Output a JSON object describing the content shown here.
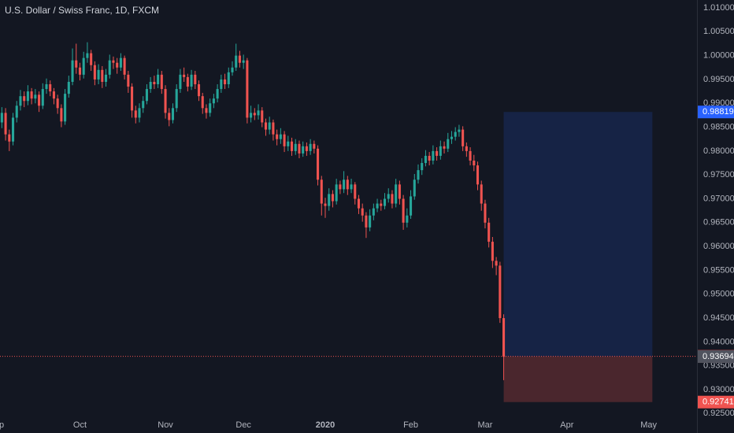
{
  "chart_data": {
    "type": "candlestick",
    "title": "U.S. Dollar / Swiss Franc, 1D, FXCM",
    "up_color": "#26a69a",
    "down_color": "#ef5350",
    "grid": false,
    "xlim": [
      -0.5,
      187
    ],
    "xticks": [
      {
        "value": -1.5,
        "label": "Sep"
      },
      {
        "value": 21,
        "label": "Oct"
      },
      {
        "value": 44,
        "label": "Nov"
      },
      {
        "value": 65,
        "label": "Dec"
      },
      {
        "value": 87,
        "label": "2020"
      },
      {
        "value": 110,
        "label": "Feb"
      },
      {
        "value": 130,
        "label": "Mar"
      },
      {
        "value": 152,
        "label": "Apr"
      },
      {
        "value": 174,
        "label": "May"
      }
    ],
    "ylim": [
      0.92093,
      1.01165
    ],
    "yticks": [
      {
        "value": 1.01,
        "label": "1.01000"
      },
      {
        "value": 1.005,
        "label": "1.00500"
      },
      {
        "value": 1.0,
        "label": "1.00000"
      },
      {
        "value": 0.995,
        "label": "0.99500"
      },
      {
        "value": 0.99,
        "label": "0.99000"
      },
      {
        "value": 0.985,
        "label": "0.98500"
      },
      {
        "value": 0.98,
        "label": "0.98000"
      },
      {
        "value": 0.975,
        "label": "0.97500"
      },
      {
        "value": 0.97,
        "label": "0.97000"
      },
      {
        "value": 0.965,
        "label": "0.96500"
      },
      {
        "value": 0.96,
        "label": "0.96000"
      },
      {
        "value": 0.955,
        "label": "0.95500"
      },
      {
        "value": 0.95,
        "label": "0.95000"
      },
      {
        "value": 0.945,
        "label": "0.94500"
      },
      {
        "value": 0.94,
        "label": "0.94000"
      },
      {
        "value": 0.935,
        "label": "0.93500"
      },
      {
        "value": 0.93,
        "label": "0.93000"
      },
      {
        "value": 0.925,
        "label": "0.92500"
      }
    ],
    "open": [
      0.986,
      0.988,
      0.9835,
      0.982,
      0.987,
      0.9895,
      0.9915,
      0.9905,
      0.9925,
      0.991,
      0.9918,
      0.9895,
      0.993,
      0.994,
      0.9925,
      0.991,
      0.989,
      0.9862,
      0.992,
      0.9945,
      0.999,
      0.9975,
      0.996,
      0.9995,
      1.0005,
      0.998,
      0.995,
      0.997,
      0.9945,
      0.996,
      0.999,
      0.9985,
      0.9975,
      0.9995,
      0.996,
      0.9935,
      0.9885,
      0.987,
      0.989,
      0.9905,
      0.993,
      0.9945,
      0.994,
      0.996,
      0.993,
      0.988,
      0.9865,
      0.989,
      0.993,
      0.996,
      0.9955,
      0.9935,
      0.996,
      0.994,
      0.9915,
      0.989,
      0.988,
      0.99,
      0.991,
      0.993,
      0.995,
      0.994,
      0.9965,
      0.9975,
      1.0,
      0.9985,
      0.999,
      0.987,
      0.988,
      0.9875,
      0.9885,
      0.986,
      0.9845,
      0.986,
      0.9835,
      0.9825,
      0.9835,
      0.981,
      0.982,
      0.98,
      0.9815,
      0.9795,
      0.981,
      0.98,
      0.9815,
      0.9805,
      0.974,
      0.969,
      0.9685,
      0.971,
      0.9695,
      0.973,
      0.972,
      0.974,
      0.972,
      0.973,
      0.97,
      0.968,
      0.9665,
      0.964,
      0.9665,
      0.968,
      0.969,
      0.9685,
      0.97,
      0.971,
      0.969,
      0.973,
      0.97,
      0.965,
      0.9665,
      0.9705,
      0.974,
      0.976,
      0.9775,
      0.979,
      0.978,
      0.98,
      0.979,
      0.981,
      0.9805,
      0.9825,
      0.983,
      0.984,
      0.9845,
      0.981,
      0.98,
      0.978,
      0.977,
      0.973,
      0.969,
      0.965,
      0.961,
      0.957,
      0.956,
      0.945
    ],
    "high": [
      0.9892,
      0.989,
      0.9845,
      0.988,
      0.9905,
      0.9928,
      0.9925,
      0.9938,
      0.9932,
      0.993,
      0.9925,
      0.9942,
      0.9952,
      0.9948,
      0.9932,
      0.9918,
      0.9898,
      0.993,
      0.9958,
      1.0015,
      1.0025,
      0.9985,
      1.0008,
      1.0028,
      1.0012,
      0.9988,
      0.9982,
      0.9978,
      0.9972,
      1.0002,
      0.9998,
      0.9995,
      1.0005,
      1.0,
      0.9968,
      0.9942,
      0.9895,
      0.99,
      0.9915,
      0.994,
      0.9955,
      0.9958,
      0.9972,
      0.9968,
      0.9938,
      0.989,
      0.99,
      0.994,
      0.9972,
      0.9975,
      0.9962,
      0.997,
      0.9968,
      0.9948,
      0.9922,
      0.9898,
      0.991,
      0.992,
      0.994,
      0.996,
      0.9962,
      0.9975,
      0.9988,
      1.0025,
      1.001,
      1.0002,
      0.9995,
      0.9895,
      0.989,
      0.9898,
      0.9892,
      0.9868,
      0.9872,
      0.9866,
      0.9845,
      0.9848,
      0.9842,
      0.9832,
      0.9828,
      0.9825,
      0.9822,
      0.982,
      0.9818,
      0.9825,
      0.9822,
      0.9812,
      0.9748,
      0.9702,
      0.9722,
      0.9718,
      0.9742,
      0.9738,
      0.9758,
      0.9748,
      0.9742,
      0.9735,
      0.9708,
      0.969,
      0.9672,
      0.9678,
      0.969,
      0.97,
      0.9698,
      0.9712,
      0.9722,
      0.9718,
      0.9742,
      0.9738,
      0.9708,
      0.968,
      0.9718,
      0.9752,
      0.9772,
      0.9785,
      0.9802,
      0.9798,
      0.9812,
      0.9808,
      0.9822,
      0.982,
      0.9838,
      0.9842,
      0.985,
      0.9855,
      0.9852,
      0.9818,
      0.9808,
      0.9792,
      0.9778,
      0.9738,
      0.9698,
      0.966,
      0.962,
      0.9578,
      0.9568,
      0.9458
    ],
    "low": [
      0.9848,
      0.9822,
      0.98,
      0.9812,
      0.986,
      0.9885,
      0.9892,
      0.9896,
      0.9898,
      0.99,
      0.9882,
      0.9888,
      0.992,
      0.9915,
      0.9898,
      0.9878,
      0.985,
      0.9855,
      0.9912,
      0.9938,
      0.9962,
      0.9948,
      0.9952,
      0.9985,
      0.9968,
      0.9938,
      0.994,
      0.9932,
      0.9935,
      0.9952,
      0.9972,
      0.9962,
      0.9968,
      0.995,
      0.9922,
      0.987,
      0.9858,
      0.986,
      0.988,
      0.9898,
      0.9922,
      0.993,
      0.9932,
      0.992,
      0.9868,
      0.9852,
      0.9858,
      0.9882,
      0.9922,
      0.9945,
      0.9925,
      0.9928,
      0.993,
      0.9905,
      0.9878,
      0.9868,
      0.9872,
      0.989,
      0.9902,
      0.9922,
      0.993,
      0.9932,
      0.9958,
      0.9968,
      0.9975,
      0.9972,
      0.9858,
      0.986,
      0.9865,
      0.9866,
      0.985,
      0.9832,
      0.9835,
      0.9822,
      0.9812,
      0.9815,
      0.9798,
      0.98,
      0.979,
      0.9792,
      0.9785,
      0.9788,
      0.979,
      0.9792,
      0.9795,
      0.9728,
      0.9665,
      0.966,
      0.9675,
      0.9682,
      0.9688,
      0.971,
      0.9712,
      0.9708,
      0.9712,
      0.9688,
      0.9668,
      0.9652,
      0.9618,
      0.9632,
      0.9655,
      0.9672,
      0.9675,
      0.9678,
      0.9692,
      0.968,
      0.9682,
      0.9688,
      0.9635,
      0.964,
      0.9658,
      0.9698,
      0.9732,
      0.975,
      0.9768,
      0.977,
      0.9772,
      0.978,
      0.9782,
      0.9795,
      0.9798,
      0.9815,
      0.9822,
      0.983,
      0.98,
      0.9788,
      0.977,
      0.9758,
      0.9718,
      0.9675,
      0.9638,
      0.9598,
      0.9555,
      0.954,
      0.944,
      0.932
    ],
    "close": [
      0.988,
      0.9835,
      0.982,
      0.987,
      0.9895,
      0.9915,
      0.9905,
      0.9925,
      0.991,
      0.9918,
      0.9895,
      0.993,
      0.994,
      0.9925,
      0.991,
      0.989,
      0.9862,
      0.992,
      0.9945,
      0.999,
      0.9975,
      0.996,
      0.9995,
      1.0005,
      0.998,
      0.995,
      0.997,
      0.9945,
      0.996,
      0.999,
      0.9985,
      0.9975,
      0.9995,
      0.996,
      0.9935,
      0.9885,
      0.987,
      0.989,
      0.9905,
      0.993,
      0.9945,
      0.994,
      0.996,
      0.993,
      0.988,
      0.9865,
      0.989,
      0.993,
      0.996,
      0.9955,
      0.9935,
      0.996,
      0.994,
      0.9915,
      0.989,
      0.988,
      0.99,
      0.991,
      0.993,
      0.995,
      0.994,
      0.9965,
      0.9975,
      1.0,
      0.9985,
      0.999,
      0.987,
      0.988,
      0.9875,
      0.9885,
      0.986,
      0.9845,
      0.986,
      0.9835,
      0.9825,
      0.9835,
      0.981,
      0.982,
      0.98,
      0.9815,
      0.9795,
      0.981,
      0.98,
      0.9815,
      0.9805,
      0.974,
      0.969,
      0.9685,
      0.971,
      0.9695,
      0.973,
      0.972,
      0.974,
      0.972,
      0.973,
      0.97,
      0.968,
      0.9665,
      0.964,
      0.9665,
      0.968,
      0.969,
      0.9685,
      0.97,
      0.971,
      0.969,
      0.973,
      0.97,
      0.965,
      0.9665,
      0.9705,
      0.974,
      0.976,
      0.9775,
      0.979,
      0.978,
      0.98,
      0.979,
      0.981,
      0.9805,
      0.9825,
      0.983,
      0.984,
      0.9845,
      0.981,
      0.98,
      0.978,
      0.977,
      0.973,
      0.969,
      0.965,
      0.961,
      0.957,
      0.956,
      0.945,
      0.9369
    ],
    "position": {
      "start": 135,
      "end": 175,
      "target": 0.98819,
      "entry": 0.93699,
      "stop": 0.92741,
      "target_color": "#2962ff",
      "stop_color": "#ef5350"
    },
    "last_price": 0.93694
  }
}
